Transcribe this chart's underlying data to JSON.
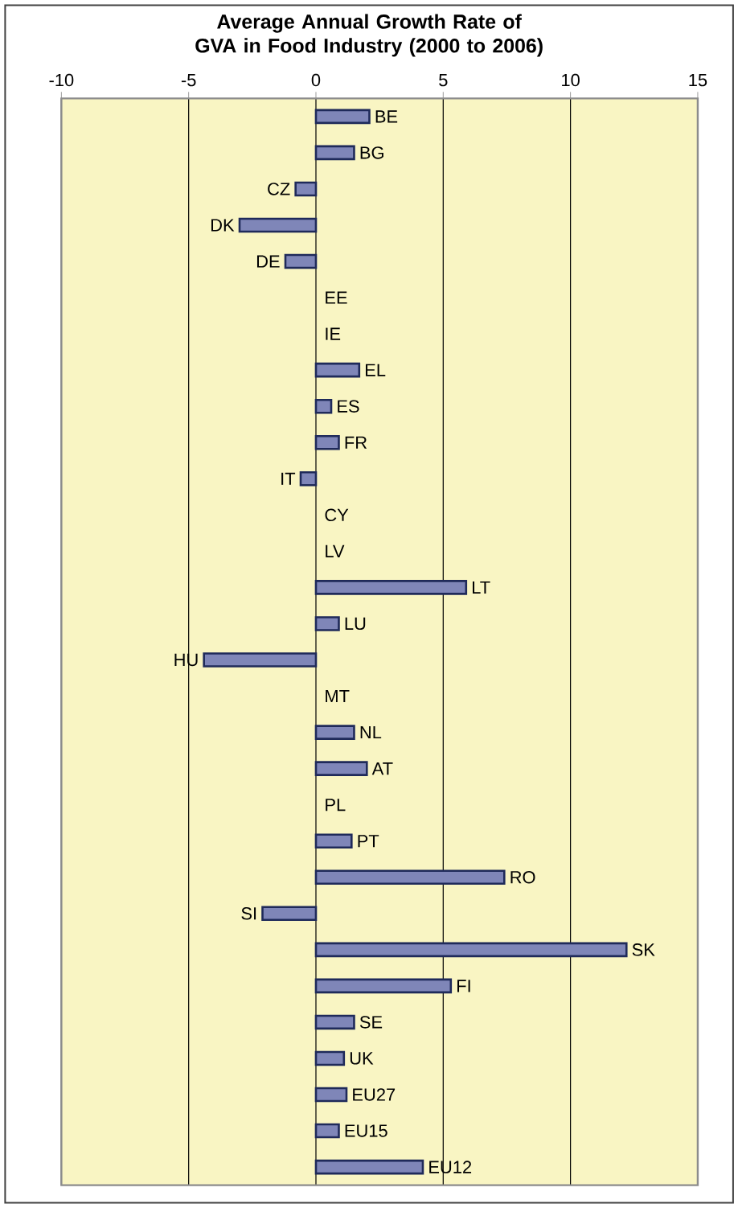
{
  "chart_data": {
    "type": "bar",
    "orientation": "horizontal",
    "title": "Average Annual Growth Rate of GVA in Food Industry  (2000 to 2006)",
    "categories": [
      "BE",
      "BG",
      "CZ",
      "DK",
      "DE",
      "EE",
      "IE",
      "EL",
      "ES",
      "FR",
      "IT",
      "CY",
      "LV",
      "LT",
      "LU",
      "HU",
      "MT",
      "NL",
      "AT",
      "PL",
      "PT",
      "RO",
      "SI",
      "SK",
      "FI",
      "SE",
      "UK",
      "EU27",
      "EU15",
      "EU12"
    ],
    "values": [
      2.1,
      1.5,
      -0.8,
      -3.0,
      -1.2,
      null,
      null,
      1.7,
      0.6,
      0.9,
      -0.6,
      null,
      null,
      5.9,
      0.9,
      -4.4,
      null,
      1.5,
      2.0,
      null,
      1.4,
      7.4,
      -2.1,
      12.2,
      5.3,
      1.5,
      1.1,
      1.2,
      0.9,
      4.2
    ],
    "color": "#7f86b8",
    "xlim": [
      -10,
      15
    ],
    "xticks": [
      -10,
      -5,
      0,
      5,
      10,
      15
    ],
    "grid": "x"
  }
}
